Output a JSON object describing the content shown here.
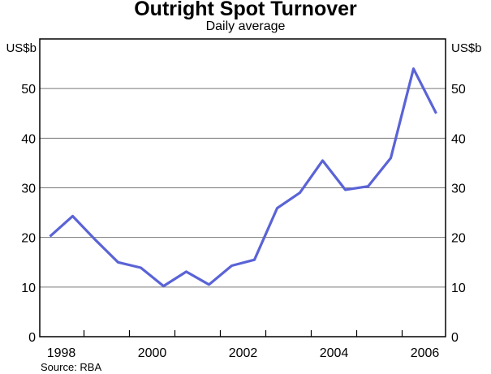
{
  "page": {
    "title": "Outright Spot Turnover",
    "subtitle": "Daily average",
    "unit_label_left": "US$b",
    "unit_label_right": "US$b",
    "source": "Source: RBA"
  },
  "colors": {
    "line": "#5a63d6",
    "grid": "#777777",
    "frame": "#000000",
    "text": "#000000",
    "background": "#ffffff"
  },
  "chart_data": {
    "type": "line",
    "title": "Outright Spot Turnover",
    "subtitle": "Daily average",
    "xlabel": "",
    "ylabel": "US$b",
    "ylim": [
      0,
      60
    ],
    "y_gridlines": [
      10,
      20,
      30,
      40,
      50
    ],
    "y_tick_labels": [
      0,
      10,
      20,
      30,
      40,
      50
    ],
    "x_ticks": [
      1999,
      2000,
      2001,
      2002,
      2003,
      2004,
      2005,
      2006
    ],
    "x_label_years": [
      1998,
      2000,
      2002,
      2004,
      2006
    ],
    "grid": true,
    "legend_position": "none",
    "series": [
      {
        "name": "Outright spot turnover, daily average (US$b)",
        "color": "#5a63d6",
        "x": [
          1998.25,
          1998.75,
          1999.25,
          1999.75,
          2000.25,
          2000.75,
          2001.25,
          2001.75,
          2002.25,
          2002.75,
          2003.25,
          2003.75,
          2004.25,
          2004.75,
          2005.25,
          2005.75,
          2006.25,
          2006.75
        ],
        "values": [
          20.2,
          24.3,
          19.5,
          15.0,
          13.9,
          10.2,
          13.1,
          10.5,
          14.3,
          15.5,
          25.9,
          29.0,
          35.5,
          29.6,
          30.3,
          36.0,
          54.0,
          45.0
        ]
      }
    ],
    "source": "Source: RBA"
  }
}
